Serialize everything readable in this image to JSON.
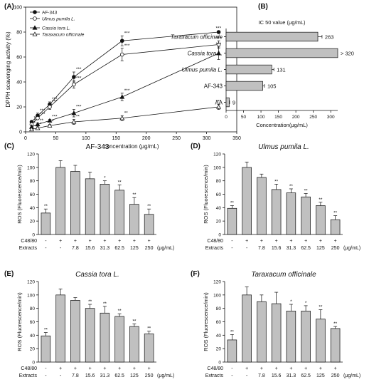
{
  "panels": [
    {
      "id": "A",
      "letter": "(A)",
      "chart_data": {
        "type": "line",
        "xlabel": "concentration (μg/mL)",
        "ylabel": "DPPH scavenging activity (%)",
        "xlim": [
          0,
          350
        ],
        "ylim": [
          0,
          100
        ],
        "xticks": [
          0,
          50,
          100,
          150,
          200,
          250,
          300,
          350
        ],
        "yticks": [
          0,
          20,
          40,
          60,
          80,
          100
        ],
        "legend": "top-left",
        "series": [
          {
            "name": "AF-343",
            "marker": "filled-circle",
            "x": [
              10,
              20,
              40,
              80,
              160,
              320
            ],
            "y": [
              8,
              13,
              22,
              44,
              73,
              80
            ],
            "err": [
              1,
              2,
              2,
              4,
              4,
              1
            ],
            "sig": [
              "**",
              "***",
              "***",
              "***",
              "***",
              "***"
            ]
          },
          {
            "name": "Ulmus pumila L.",
            "marker": "open-circle",
            "x": [
              10,
              20,
              40,
              80,
              160,
              320
            ],
            "y": [
              6,
              11,
              20,
              38,
              62,
              70
            ],
            "err": [
              1,
              1,
              2,
              3,
              5,
              3
            ],
            "sig": [
              "**",
              "***",
              "***",
              "***",
              "***",
              "***"
            ]
          },
          {
            "name": "Cassia tora L.",
            "marker": "filled-triangle",
            "x": [
              10,
              20,
              40,
              80,
              160,
              320
            ],
            "y": [
              4,
              6,
              9,
              15,
              28,
              63
            ],
            "err": [
              1,
              1,
              1,
              3,
              3,
              5
            ],
            "sig": [
              "*",
              "**",
              "***",
              "***",
              "***",
              "***"
            ]
          },
          {
            "name": "Taraxacum officinale",
            "marker": "open-triangle",
            "x": [
              10,
              20,
              40,
              80,
              160,
              320
            ],
            "y": [
              2,
              3,
              5,
              8,
              11,
              20
            ],
            "err": [
              1,
              1,
              1,
              2,
              2,
              2
            ],
            "sig": [
              "",
              "*",
              "*",
              "**",
              "**",
              "***"
            ]
          }
        ]
      }
    },
    {
      "id": "B",
      "letter": "(B)",
      "chart_data": {
        "type": "bar",
        "orientation": "horizontal",
        "title": "IC 50 value (μg/mL)",
        "xlabel": "Concentration(μg/mL)",
        "xlim": [
          0,
          320
        ],
        "xticks": [
          0,
          50,
          100,
          150,
          200,
          250,
          300
        ],
        "categories": [
          "Taraxacum officinale",
          "Cassia tora L.",
          "Ulmus pumila L.",
          "AF-343",
          "AA"
        ],
        "italic": [
          true,
          true,
          true,
          false,
          false
        ],
        "values": [
          263,
          320,
          131,
          105,
          9
        ],
        "err": [
          12,
          0,
          6,
          5,
          1
        ],
        "labels": [
          "263",
          "> 320",
          "131",
          "105",
          "9"
        ]
      }
    },
    {
      "id": "C",
      "letter": "(C)",
      "chart_data": {
        "type": "bar",
        "title": "AF-343",
        "title_italic": false,
        "ylabel": "ROS (Fluorescence/min)",
        "ylim": [
          0,
          120
        ],
        "yticks": [
          0,
          20,
          40,
          60,
          80,
          100,
          120
        ],
        "values": [
          32,
          100,
          94,
          83,
          75,
          66,
          45,
          30
        ],
        "err": [
          6,
          10,
          9,
          10,
          5,
          8,
          10,
          8
        ],
        "sig": [
          "**",
          "",
          "",
          "",
          "*",
          "**",
          "**",
          "**"
        ]
      }
    },
    {
      "id": "D",
      "letter": "(D)",
      "chart_data": {
        "type": "bar",
        "title": "Ulmus pumila L.",
        "title_italic": true,
        "ylabel": "ROS (Fluorescence/min)",
        "ylim": [
          0,
          120
        ],
        "yticks": [
          0,
          20,
          40,
          60,
          80,
          100,
          120
        ],
        "values": [
          39,
          100,
          85,
          67,
          62,
          56,
          43,
          22
        ],
        "err": [
          4,
          8,
          5,
          8,
          6,
          5,
          5,
          6
        ],
        "sig": [
          "**",
          "",
          "",
          "**",
          "**",
          "**",
          "**",
          "**"
        ]
      }
    },
    {
      "id": "E",
      "letter": "(E)",
      "chart_data": {
        "type": "bar",
        "title": "Cassia tora L.",
        "title_italic": true,
        "ylabel": "ROS (Fluorescence/min)",
        "ylim": [
          0,
          120
        ],
        "yticks": [
          0,
          20,
          40,
          60,
          80,
          100,
          120
        ],
        "values": [
          39,
          100,
          92,
          80,
          73,
          68,
          53,
          42
        ],
        "err": [
          5,
          9,
          4,
          6,
          10,
          4,
          4,
          4
        ],
        "sig": [
          "**",
          "",
          "",
          "**",
          "**",
          "**",
          "**",
          "**"
        ]
      }
    },
    {
      "id": "F",
      "letter": "(F)",
      "chart_data": {
        "type": "bar",
        "title": "Taraxacum officinale",
        "title_italic": true,
        "ylabel": "ROS (Fluorescence/min)",
        "ylim": [
          0,
          120
        ],
        "yticks": [
          0,
          20,
          40,
          60,
          80,
          100,
          120
        ],
        "values": [
          33,
          100,
          90,
          87,
          76,
          76,
          64,
          50
        ],
        "err": [
          8,
          12,
          10,
          17,
          10,
          8,
          14,
          3
        ],
        "sig": [
          "**",
          "",
          "",
          "",
          "*",
          "*",
          "**",
          "**"
        ]
      }
    }
  ],
  "ros_axis": {
    "row1_label": "C48/80",
    "row1_values": [
      "-",
      "+",
      "+",
      "+",
      "+",
      "+",
      "+",
      "+"
    ],
    "row2_label": "Extracts",
    "row2_values": [
      "-",
      "-",
      "7.8",
      "15.6",
      "31.3",
      "62.5",
      "125",
      "250"
    ],
    "unit": "(μg/mL)"
  },
  "colors": {
    "bar": "#c0c0c0",
    "ink": "#111111"
  }
}
